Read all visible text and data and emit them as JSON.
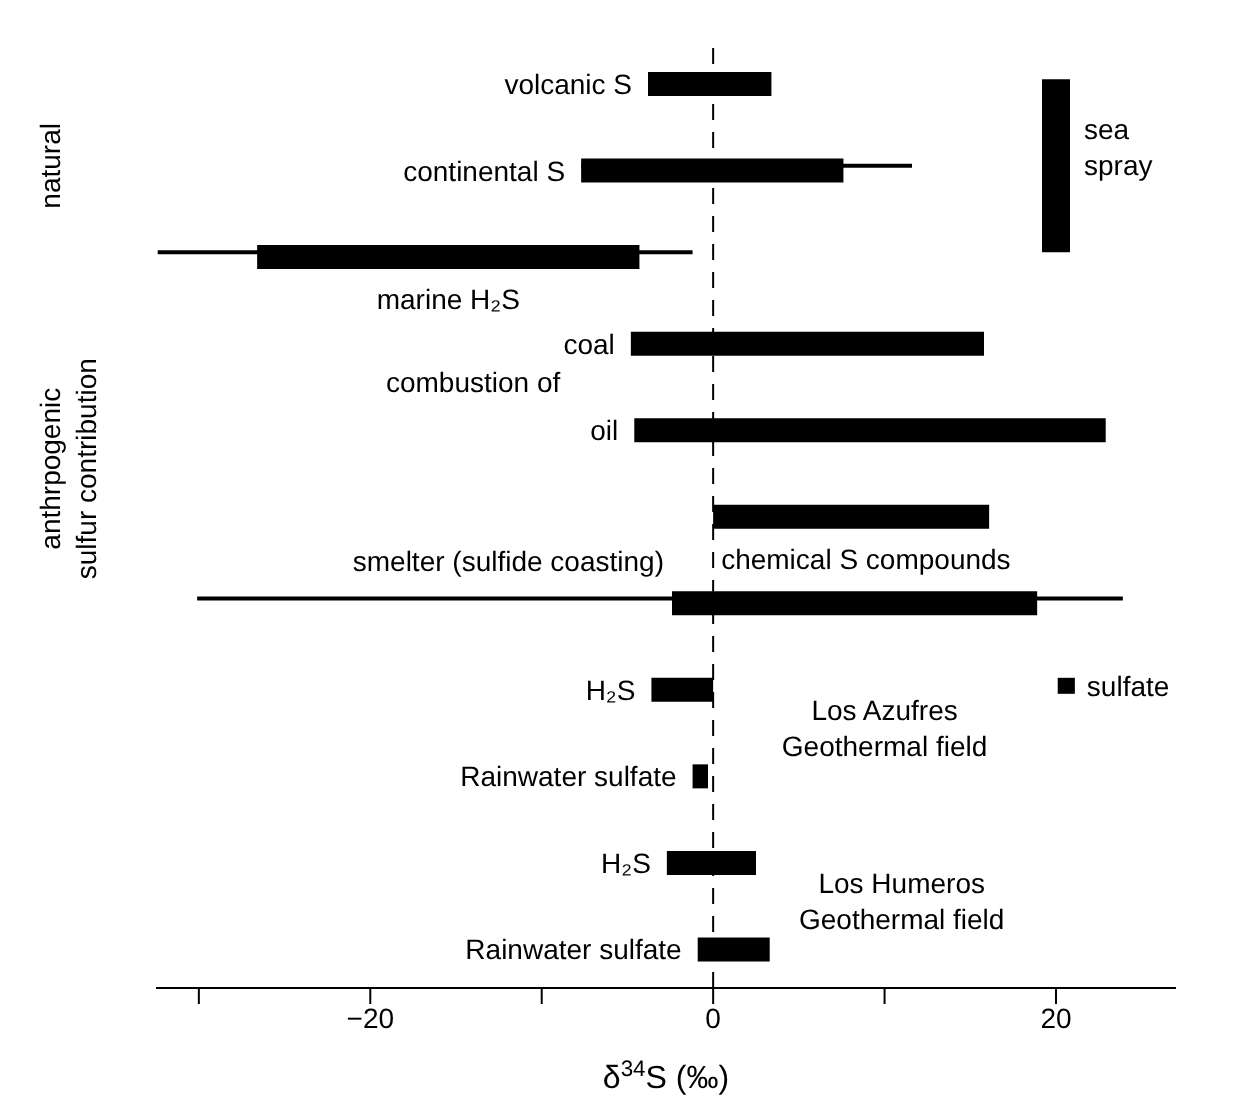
{
  "chart_data": {
    "type": "bar",
    "orientation": "horizontal",
    "xlabel": "δ$^{34}$S (‰)",
    "categories": [
      "volcanic S",
      "continental S",
      "marine H₂S",
      "coal",
      "oil",
      "chemical S compounds",
      "smelter (sulfide coasting)",
      "H₂S",
      "Rainwater sulfate",
      "H₂S",
      "Rainwater sulfate"
    ],
    "series": [
      {
        "color": "#000000",
        "base": [
          -3.8,
          -7.7,
          -26.6,
          -4.8,
          -4.6,
          0,
          -2.4,
          -3.6,
          -1.2,
          -2.7,
          -0.9
        ],
        "values": [
          7.2,
          15.3,
          22.3,
          20.6,
          27.5,
          16.1,
          21.3,
          3.6,
          0.9,
          5.2,
          4.2
        ],
        "errors": [
          null,
          [
            -7.7,
            11.6
          ],
          [
            -32.4,
            -1.2
          ],
          null,
          null,
          null,
          [
            -30.1,
            23.9
          ],
          null,
          null,
          null,
          null
        ]
      },
      {
        "name": "sulfate",
        "color": "#000000",
        "base": [
          null,
          null,
          null,
          null,
          null,
          null,
          null,
          20.1,
          null,
          null,
          null
        ],
        "values": [
          null,
          null,
          null,
          null,
          null,
          null,
          null,
          1.0,
          null,
          null,
          null
        ]
      }
    ],
    "xlim": [
      -32.5,
      27
    ],
    "xticks": [
      {
        "value": -30,
        "label": null
      },
      -20,
      {
        "value": -10,
        "label": null
      },
      0,
      {
        "value": 10,
        "label": null
      },
      20
    ],
    "ref_lines": [
      {
        "axis": "x",
        "value": 0,
        "line_style": "dashed",
        "color": "#000000"
      },
      {
        "axis": "x",
        "value": 20,
        "label": "sea spray",
        "color": "#000000"
      }
    ],
    "annotations": [
      "combustion of",
      "Los Azufres Geothermal field",
      "Los Humeros Geothermal field",
      "natural",
      "anthrpogenic sulfur contribution"
    ]
  }
}
